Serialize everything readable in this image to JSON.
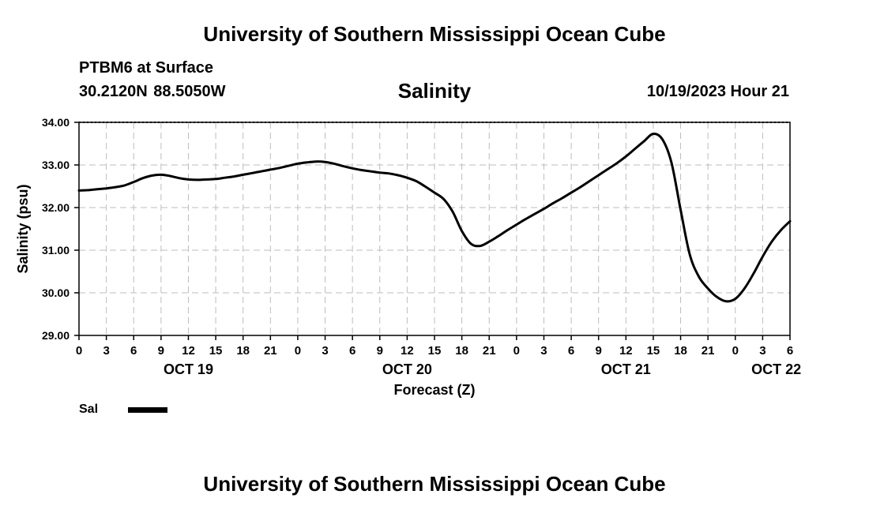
{
  "header": {
    "title": "University of Southern Mississippi Ocean Cube",
    "station": "PTBM6 at Surface",
    "coords": "30.2120N  88.5050W",
    "run_time": "10/19/2023 Hour 21"
  },
  "footer": {
    "title": "University of Southern Mississippi Ocean Cube"
  },
  "chart_data": {
    "type": "line",
    "title": "Salinity",
    "xlabel": "Forecast (Z)",
    "ylabel": "Salinity (psu)",
    "ylim": [
      29.0,
      34.0
    ],
    "yticks": [
      "29.00",
      "30.00",
      "31.00",
      "32.00",
      "33.00",
      "34.00"
    ],
    "xlim_hours": [
      0,
      78
    ],
    "xticks": [
      "0",
      "3",
      "6",
      "9",
      "12",
      "15",
      "18",
      "21",
      "0",
      "3",
      "6",
      "9",
      "12",
      "15",
      "18",
      "21",
      "0",
      "3",
      "6",
      "9",
      "12",
      "15",
      "18",
      "21",
      "0",
      "3",
      "6"
    ],
    "date_labels": [
      {
        "label": "OCT 19",
        "at_hour": 12
      },
      {
        "label": "OCT 20",
        "at_hour": 36
      },
      {
        "label": "OCT 21",
        "at_hour": 60
      },
      {
        "label": "OCT 22",
        "at_hour": 76.5
      }
    ],
    "grid": true,
    "legend": {
      "label": "Sal",
      "position": "bottom-left"
    },
    "series": [
      {
        "name": "Sal",
        "color": "#000000",
        "x": [
          0,
          1,
          2,
          3,
          4,
          5,
          6,
          7,
          8,
          9,
          10,
          11,
          12,
          13,
          14,
          15,
          16,
          17,
          18,
          19,
          20,
          21,
          22,
          23,
          24,
          25,
          26,
          27,
          28,
          29,
          30,
          31,
          32,
          33,
          34,
          35,
          36,
          37,
          38,
          39,
          40,
          41,
          42,
          43,
          44,
          45,
          46,
          47,
          48,
          49,
          50,
          51,
          52,
          53,
          54,
          55,
          56,
          57,
          58,
          59,
          60,
          61,
          62,
          63,
          64,
          65,
          66,
          67,
          68,
          69,
          70,
          71,
          72,
          73,
          74,
          75,
          76,
          77,
          78
        ],
        "values": [
          32.4,
          32.41,
          32.43,
          32.45,
          32.48,
          32.52,
          32.6,
          32.69,
          32.75,
          32.77,
          32.74,
          32.69,
          32.66,
          32.65,
          32.66,
          32.67,
          32.7,
          32.73,
          32.77,
          32.81,
          32.85,
          32.89,
          32.93,
          32.98,
          33.03,
          33.06,
          33.08,
          33.07,
          33.03,
          32.97,
          32.92,
          32.88,
          32.85,
          32.82,
          32.8,
          32.76,
          32.7,
          32.62,
          32.49,
          32.35,
          32.2,
          31.9,
          31.45,
          31.15,
          31.1,
          31.2,
          31.33,
          31.47,
          31.6,
          31.73,
          31.85,
          31.97,
          32.1,
          32.22,
          32.35,
          32.48,
          32.62,
          32.76,
          32.9,
          33.04,
          33.2,
          33.38,
          33.56,
          33.73,
          33.6,
          33.05,
          31.95,
          30.9,
          30.38,
          30.1,
          29.9,
          29.8,
          29.86,
          30.1,
          30.45,
          30.85,
          31.2,
          31.47,
          31.68
        ]
      }
    ]
  }
}
